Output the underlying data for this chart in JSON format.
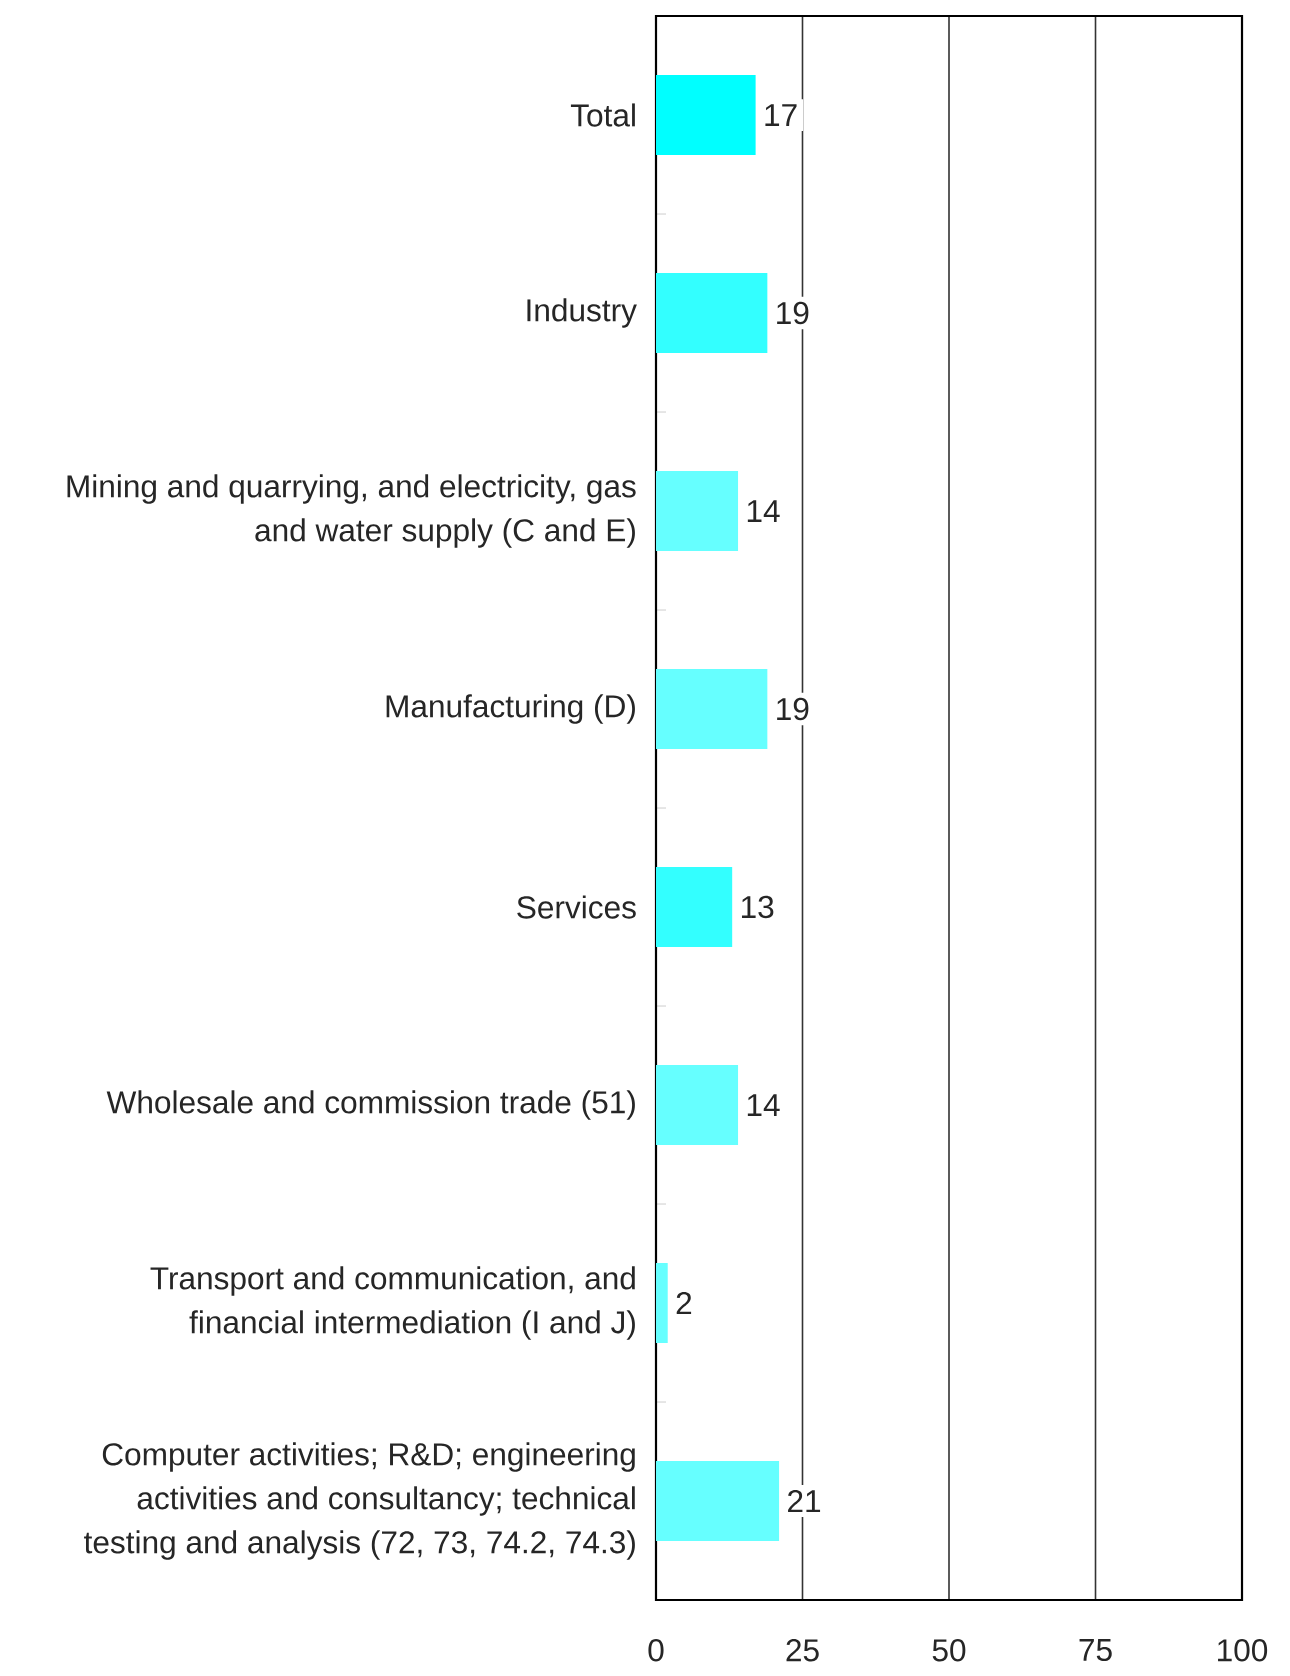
{
  "chart_data": {
    "type": "bar",
    "orientation": "horizontal",
    "categories": [
      "Total",
      "Industry",
      "Mining and quarrying, and electricity, gas and water supply (C and E)",
      "Manufacturing (D)",
      "Services",
      "Wholesale and commission trade (51)",
      "Transport and communication, and financial intermediation (I and J)",
      "Computer activities; R&D; engineering activities and consultancy; technical testing and analysis (72, 73, 74.2, 74.3)"
    ],
    "values": [
      17,
      19,
      14,
      19,
      13,
      14,
      2,
      21
    ],
    "colors": [
      "#00ffff",
      "#33ffff",
      "#66ffff",
      "#66ffff",
      "#33ffff",
      "#66ffff",
      "#66ffff",
      "#66ffff"
    ],
    "xlim": [
      0,
      100
    ],
    "xticks": [
      0,
      25,
      50,
      75,
      100
    ],
    "grid": "x",
    "data_labels": true
  }
}
